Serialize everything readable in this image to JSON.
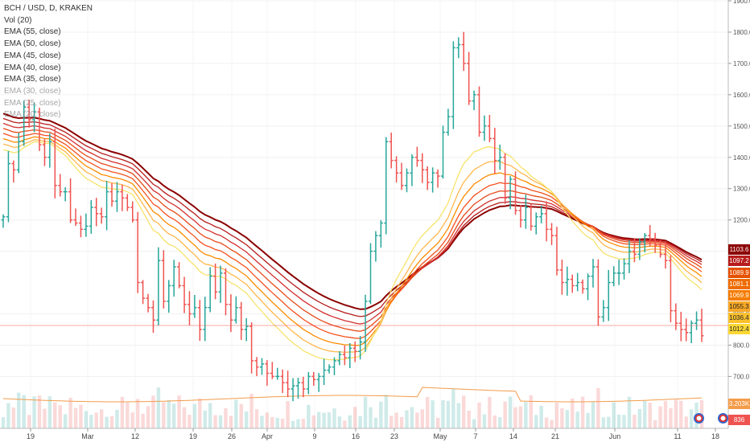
{
  "legend": {
    "title": "BCH / USD, D, KRAKEN",
    "vol": "Vol (20)",
    "ema": [
      "EMA (55, close)",
      "EMA (50, close)",
      "EMA (45, close)",
      "EMA (40, close)",
      "EMA (35, close)",
      "EMA (30, close)",
      "EMA (25, close)",
      "EMA (20, close)"
    ]
  },
  "chart_data": {
    "type": "ohlc",
    "title": "BCH / USD, D, KRAKEN",
    "y_axis": {
      "ticks": [
        "1900.0",
        "1800.0",
        "1700.0",
        "1600.0",
        "1500.0",
        "1400.0",
        "1300.0",
        "1200.0",
        "1100.0",
        "900.0",
        "800.0",
        "700.0"
      ],
      "range": [
        640,
        1900
      ]
    },
    "x_axis": {
      "ticks": [
        "19",
        "Mar",
        "12",
        "19",
        "26",
        "Apr",
        "9",
        "16",
        "23",
        "May",
        "7",
        "14",
        "21",
        "Jun",
        "11",
        "18"
      ]
    },
    "closes": [
      1210,
      1380,
      1360,
      1450,
      1560,
      1520,
      1545,
      1440,
      1400,
      1450,
      1310,
      1290,
      1290,
      1200,
      1190,
      1170,
      1180,
      1240,
      1220,
      1210,
      1290,
      1260,
      1290,
      1270,
      1240,
      1200,
      1000,
      950,
      920,
      880,
      1070,
      940,
      990,
      1050,
      990,
      930,
      900,
      920,
      850,
      920,
      1020,
      970,
      1030,
      930,
      880,
      920,
      850,
      860,
      750,
      730,
      740,
      710,
      700,
      700,
      680,
      660,
      670,
      680,
      660,
      700,
      690,
      700,
      720,
      730,
      750,
      770,
      760,
      790,
      780,
      810,
      940,
      1100,
      1150,
      1190,
      1450,
      1390,
      1350,
      1310,
      1350,
      1400,
      1390,
      1360,
      1320,
      1350,
      1340,
      1480,
      1530,
      1750,
      1760,
      1700,
      1580,
      1600,
      1480,
      1500,
      1460,
      1390,
      1400,
      1270,
      1330,
      1230,
      1200,
      1240,
      1180,
      1210,
      1220,
      1170,
      1150,
      1040,
      1000,
      1010,
      990,
      1000,
      980,
      1020,
      1050,
      890,
      920,
      1000,
      1030,
      1030,
      1060,
      1100,
      1090,
      1130,
      1150,
      1140,
      1120,
      1090,
      1070,
      910,
      870,
      850,
      840,
      870,
      880,
      830
    ],
    "ema_values": [
      1103.6,
      1097.2,
      1089.9,
      1081.1,
      1069.9,
      1055.3,
      1036.4,
      1012.4
    ],
    "extra_labels": [
      "3.203K",
      "836"
    ]
  },
  "colors": {
    "up": "#26a69a",
    "down": "#ef5350",
    "ema": [
      "#8b0000",
      "#b71c1c",
      "#d32f2f",
      "#e64a19",
      "#f4511e",
      "#fb8c00",
      "#ffb74d",
      "#f7e36b"
    ]
  }
}
